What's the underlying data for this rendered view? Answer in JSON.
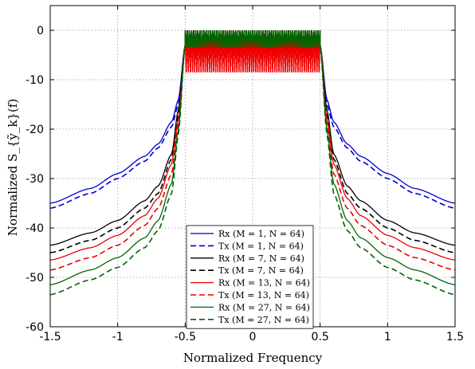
{
  "chart_data": {
    "type": "line",
    "title": "",
    "xlabel": "Normalized Frequency",
    "ylabel": "Normalized S_{ỹ_k}(f)",
    "xlim": [
      -1.5,
      1.5
    ],
    "ylim": [
      -60,
      5
    ],
    "xticks": [
      -1.5,
      -1,
      -0.5,
      0,
      0.5,
      1,
      1.5
    ],
    "xtick_labels": [
      "-1.5",
      "-1",
      "-0.5",
      "0",
      "0.5",
      "1",
      "1.5"
    ],
    "yticks": [
      -60,
      -50,
      -40,
      -30,
      -20,
      -10,
      0
    ],
    "ytick_labels": [
      "-60",
      "-50",
      "-40",
      "-30",
      "-20",
      "-10",
      "0"
    ],
    "grid": true,
    "legend_position": "bottom-center",
    "series": [
      {
        "name": "Rx (M = 1, N = 64)",
        "color": "#0000cc",
        "dash": "solid",
        "ripple_floor_db": -4.0,
        "x": [
          0.5,
          0.55,
          0.6,
          0.7,
          0.8,
          1.0,
          1.2,
          1.5
        ],
        "values": [
          -3,
          -14,
          -18.5,
          -23,
          -25.5,
          -29,
          -32,
          -35
        ]
      },
      {
        "name": "Tx (M = 1, N = 64)",
        "color": "#0000cc",
        "dash": "dashed",
        "ripple_floor_db": -4.0,
        "x": [
          0.5,
          0.55,
          0.6,
          0.7,
          0.8,
          1.0,
          1.2,
          1.5
        ],
        "values": [
          -3,
          -15,
          -19.5,
          -23.8,
          -26.5,
          -30,
          -33,
          -36
        ]
      },
      {
        "name": "Rx (M = 7, N = 64)",
        "color": "#000000",
        "dash": "solid",
        "ripple_floor_db": -4.0,
        "x": [
          0.5,
          0.55,
          0.6,
          0.7,
          0.8,
          1.0,
          1.2,
          1.5
        ],
        "values": [
          -3,
          -16,
          -25,
          -31.5,
          -34.5,
          -38.5,
          -41,
          -43.5
        ]
      },
      {
        "name": "Tx (M = 7, N = 64)",
        "color": "#000000",
        "dash": "dashed",
        "ripple_floor_db": -4.0,
        "x": [
          0.5,
          0.55,
          0.6,
          0.7,
          0.8,
          1.0,
          1.2,
          1.5
        ],
        "values": [
          -3,
          -17,
          -26,
          -33,
          -36,
          -40,
          -42.5,
          -45
        ]
      },
      {
        "name": "Rx (M = 13, N = 64)",
        "color": "#ee0000",
        "dash": "solid",
        "ripple_floor_db": -8.5,
        "x": [
          0.5,
          0.55,
          0.6,
          0.7,
          0.8,
          1.0,
          1.2,
          1.5
        ],
        "values": [
          -3,
          -18,
          -27,
          -34,
          -37.5,
          -41.5,
          -44,
          -46.5
        ]
      },
      {
        "name": "Tx (M = 13, N = 64)",
        "color": "#ee0000",
        "dash": "dashed",
        "ripple_floor_db": -8.5,
        "x": [
          0.5,
          0.55,
          0.6,
          0.7,
          0.8,
          1.0,
          1.2,
          1.5
        ],
        "values": [
          -3,
          -19,
          -29,
          -36,
          -39.5,
          -43.5,
          -46,
          -48.5
        ]
      },
      {
        "name": "Rx (M = 27, N = 64)",
        "color": "#006600",
        "dash": "solid",
        "ripple_floor_db": -3.5,
        "x": [
          0.5,
          0.55,
          0.6,
          0.7,
          0.8,
          1.0,
          1.2,
          1.5
        ],
        "values": [
          -3,
          -20,
          -31,
          -38.5,
          -42,
          -46,
          -48.5,
          -51.5
        ]
      },
      {
        "name": "Tx (M = 27, N = 64)",
        "color": "#006600",
        "dash": "dashed",
        "ripple_floor_db": -3.5,
        "x": [
          0.5,
          0.55,
          0.6,
          0.7,
          0.8,
          1.0,
          1.2,
          1.5
        ],
        "values": [
          -3,
          -21,
          -33,
          -40.5,
          -44,
          -48,
          -50.5,
          -53.5
        ]
      }
    ]
  }
}
